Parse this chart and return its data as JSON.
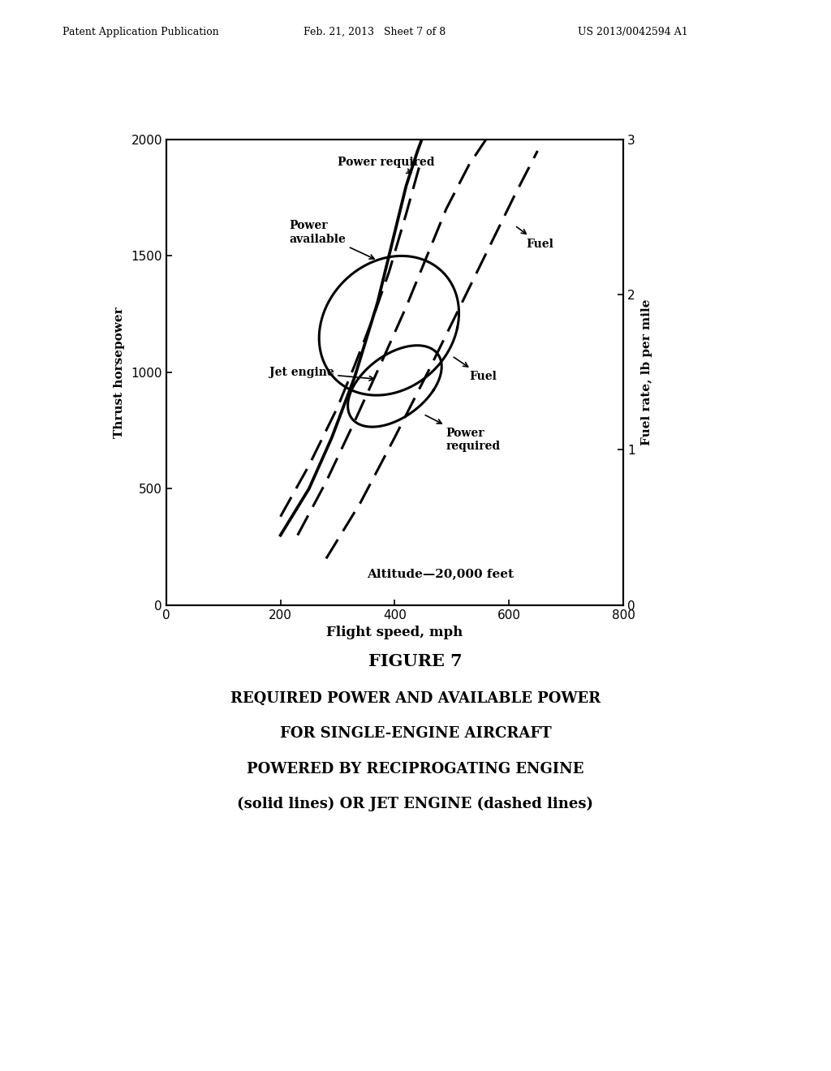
{
  "header_left": "Patent Application Publication",
  "header_mid": "Feb. 21, 2013   Sheet 7 of 8",
  "header_right": "US 2013/0042594 A1",
  "xlabel": "Flight speed, mph",
  "ylabel_left": "Thrust horsepower",
  "ylabel_right": "Fuel rate, lb per mile",
  "xlim": [
    0,
    800
  ],
  "ylim_left": [
    0,
    2000
  ],
  "ylim_right": [
    0,
    3
  ],
  "xticks": [
    0,
    200,
    400,
    600,
    800
  ],
  "yticks_left": [
    0,
    500,
    1000,
    1500,
    2000
  ],
  "yticks_right": [
    0,
    1,
    2,
    3
  ],
  "altitude_text": "Altitude—20,000 feet",
  "figure_label": "FIGURE 7",
  "caption_lines": [
    "REQUIRED POWER AND AVAILABLE POWER",
    "FOR SINGLE-ENGINE AIRCRAFT",
    "POWERED BY RECIPROGATING ENGINE",
    "(solid lines) OR JET ENGINE (dashed lines)"
  ],
  "bg_color": "#ffffff",
  "line_color": "#000000"
}
